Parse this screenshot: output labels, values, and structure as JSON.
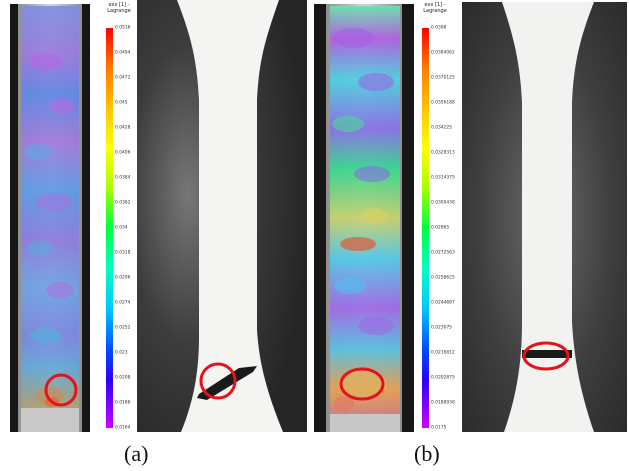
{
  "figure": {
    "panel_a": {
      "caption": "(a)",
      "legend": {
        "title": "exx [1] -\nLagrange",
        "ticks": [
          "0.0516",
          "0.0494",
          "0.0472",
          "0.045",
          "0.0428",
          "0.0406",
          "0.0384",
          "0.0362",
          "0.034",
          "0.0318",
          "0.0296",
          "0.0274",
          "0.0252",
          "0.023",
          "0.0208",
          "0.0186",
          "0.0164"
        ]
      }
    },
    "panel_b": {
      "caption": "(b)",
      "legend": {
        "title": "exx [1] -\nLagrange",
        "ticks": [
          "0.0398",
          "0.0384062",
          "0.0370125",
          "0.0356188",
          "0.034225",
          "0.0328313",
          "0.0314375",
          "0.0300438",
          "0.02865",
          "0.0272563",
          "0.0258625",
          "0.0244687",
          "0.023075",
          "0.0216812",
          "0.0202875",
          "0.0188938",
          "0.0175"
        ]
      }
    },
    "colors": {
      "marker": "#e3121b",
      "scale": [
        "#ff0000",
        "#ff7a00",
        "#ffd000",
        "#ffff00",
        "#a8ff00",
        "#00ff40",
        "#00ffc0",
        "#00c8ff",
        "#0050ff",
        "#2a00ff",
        "#8a00ff",
        "#d000ff"
      ]
    }
  }
}
